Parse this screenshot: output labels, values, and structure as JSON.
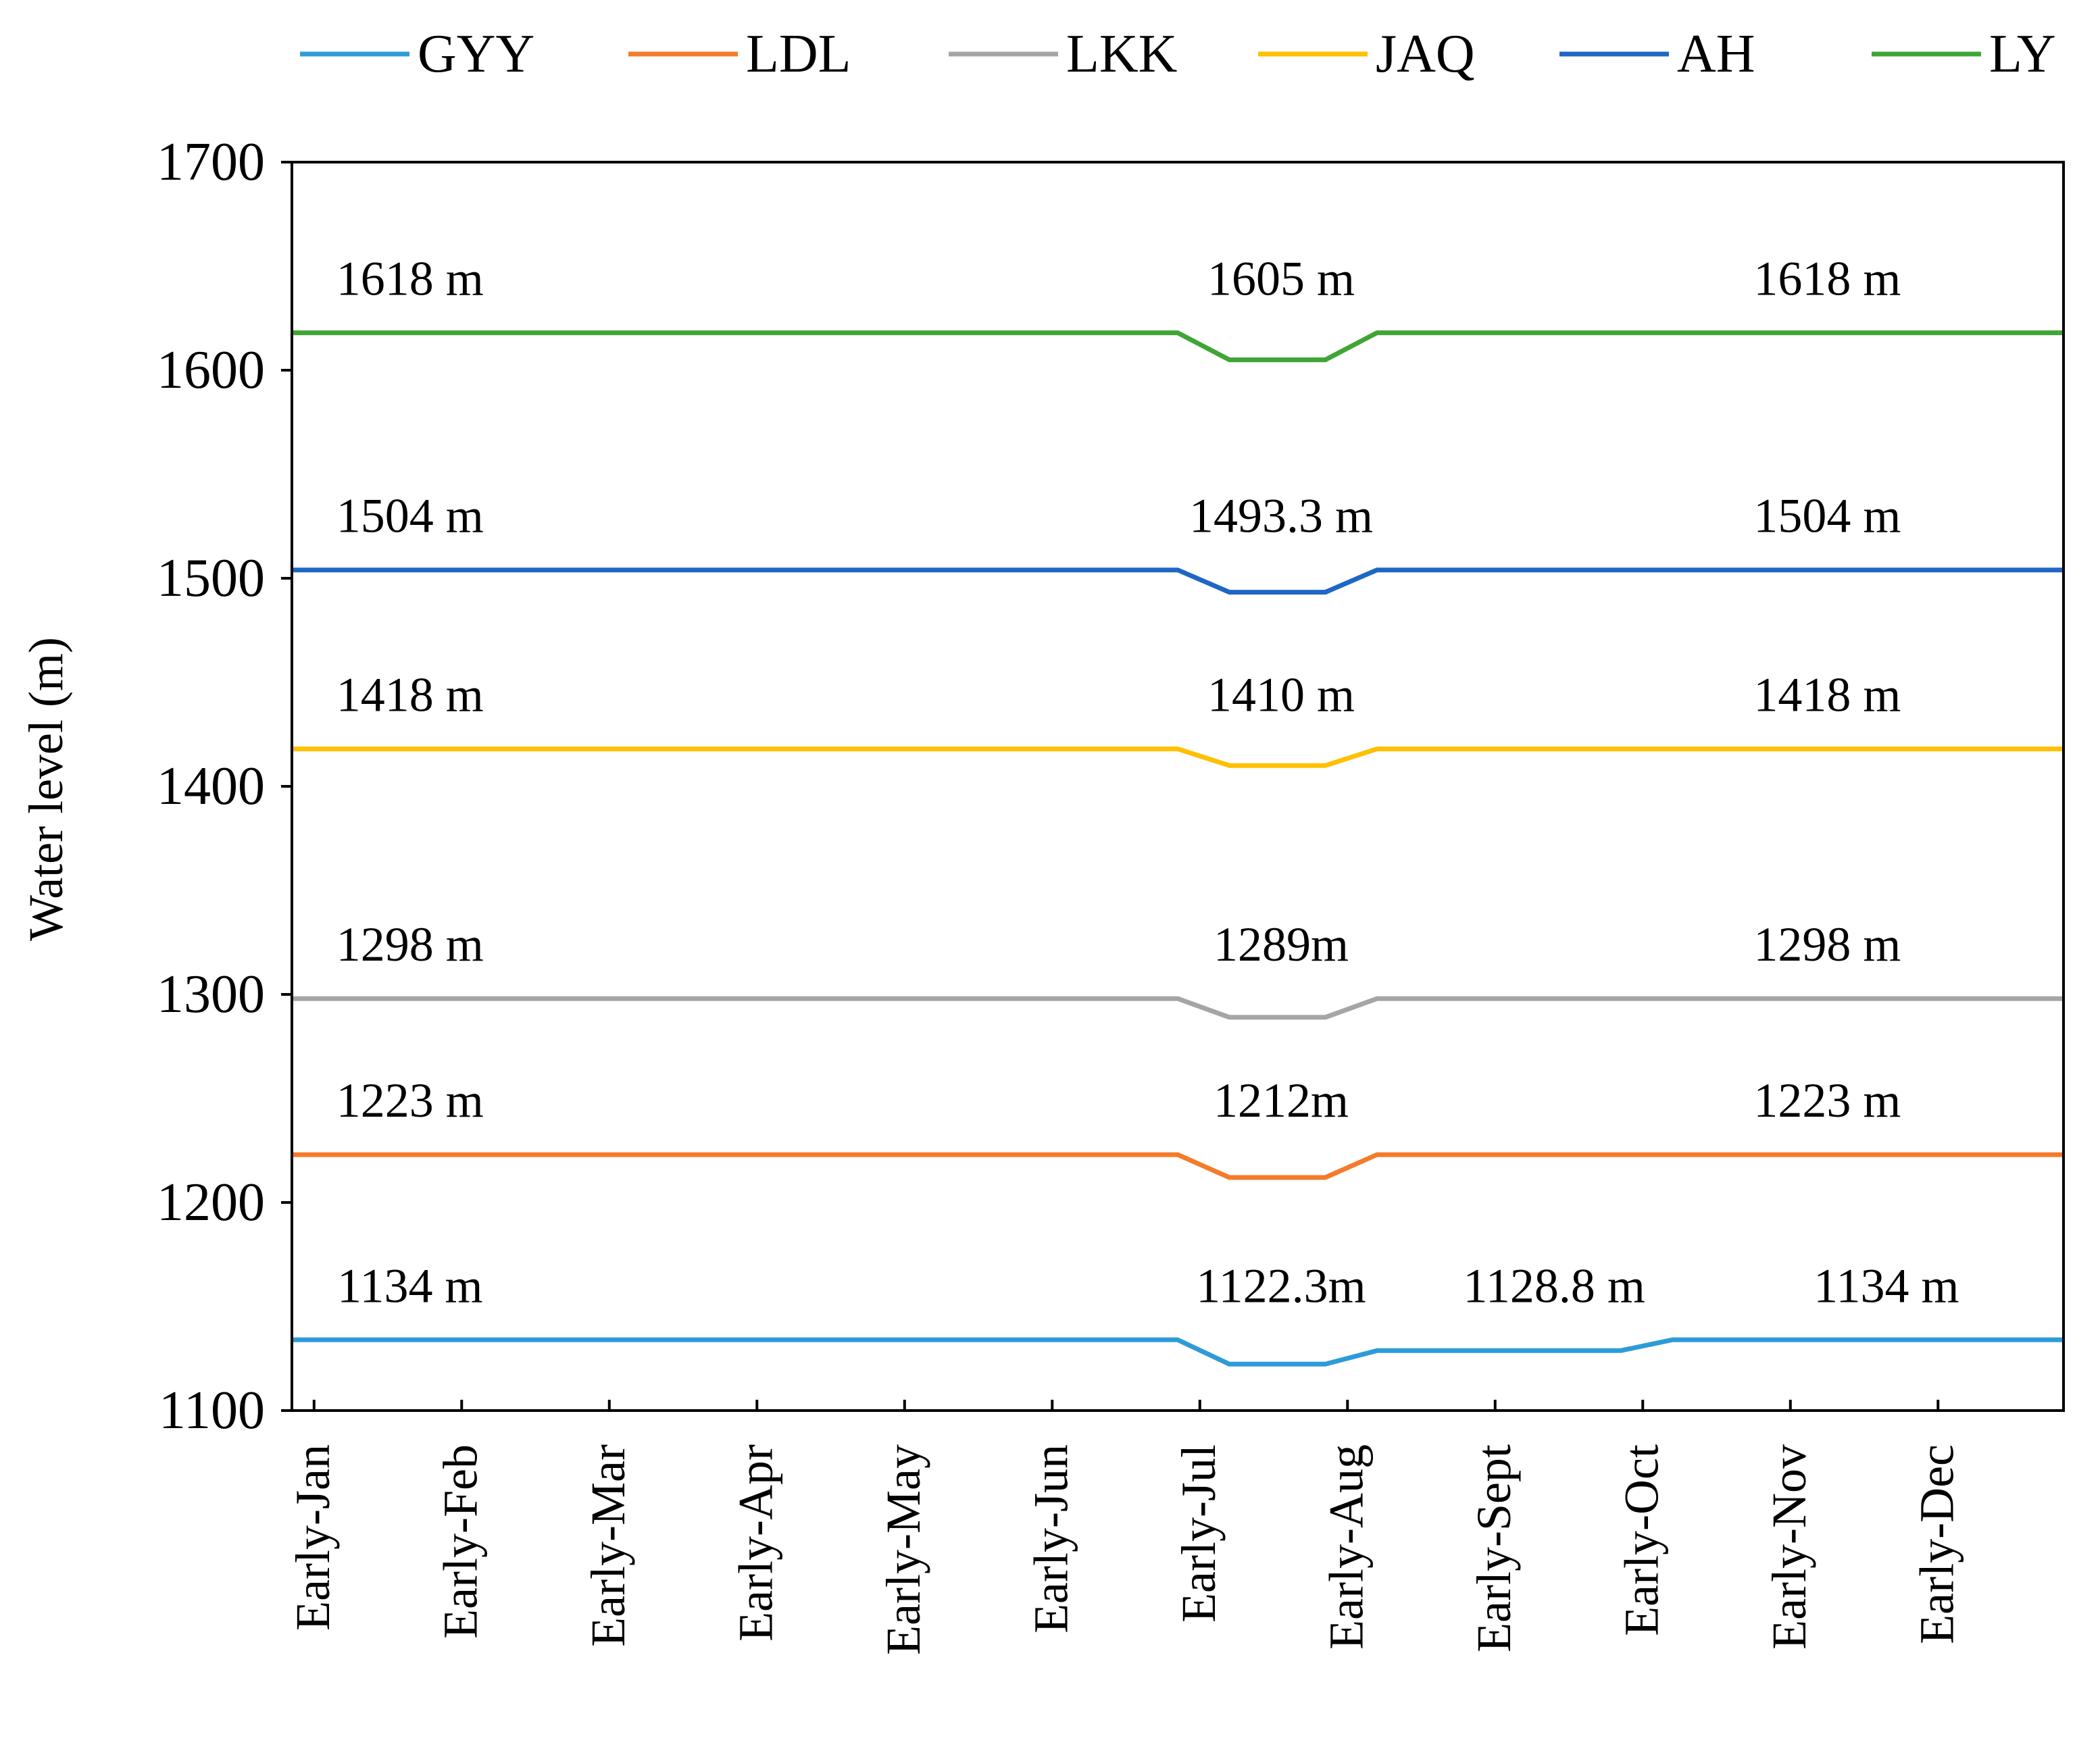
{
  "chart_data": {
    "type": "line",
    "title": "",
    "xlabel": "",
    "ylabel": "Water level (m)",
    "ylim": [
      1100,
      1700
    ],
    "yticks": [
      1100,
      1200,
      1300,
      1400,
      1500,
      1600,
      1700
    ],
    "categories": [
      "Early-Jan",
      "Early-Feb",
      "Early-Mar",
      "Early-Apr",
      "Early-May",
      "Early-Jun",
      "Early-Jul",
      "Early-Aug",
      "Early-Sept",
      "Early-Oct",
      "Early-Nov",
      "Early-Dec"
    ],
    "x_range": [
      -0.15,
      11.85
    ],
    "grid": false,
    "legend_position": "top",
    "series": [
      {
        "name": "GYY",
        "color": "#2E9BD8",
        "points": [
          [
            -0.15,
            1134
          ],
          [
            5.85,
            1134
          ],
          [
            6.2,
            1122.3
          ],
          [
            6.85,
            1122.3
          ],
          [
            7.2,
            1128.8
          ],
          [
            8.85,
            1128.8
          ],
          [
            9.2,
            1134
          ],
          [
            11.85,
            1134
          ]
        ],
        "annotations": [
          {
            "text": "1134 m",
            "x": 0.65,
            "y": 1134
          },
          {
            "text": "1122.3m",
            "x": 6.55,
            "y": 1134
          },
          {
            "text": "1128.8 m",
            "x": 8.4,
            "y": 1134
          },
          {
            "text": "1134 m",
            "x": 10.65,
            "y": 1134
          }
        ]
      },
      {
        "name": "LDL",
        "color": "#F47B2A",
        "points": [
          [
            -0.15,
            1223
          ],
          [
            5.85,
            1223
          ],
          [
            6.2,
            1212
          ],
          [
            6.85,
            1212
          ],
          [
            7.2,
            1223
          ],
          [
            11.85,
            1223
          ]
        ],
        "annotations": [
          {
            "text": "1223 m",
            "x": 0.65,
            "y": 1223
          },
          {
            "text": "1212m",
            "x": 6.55,
            "y": 1223
          },
          {
            "text": "1223 m",
            "x": 10.25,
            "y": 1223
          }
        ]
      },
      {
        "name": "LKK",
        "color": "#A5A5A5",
        "points": [
          [
            -0.15,
            1298
          ],
          [
            5.85,
            1298
          ],
          [
            6.2,
            1289
          ],
          [
            6.85,
            1289
          ],
          [
            7.2,
            1298
          ],
          [
            11.85,
            1298
          ]
        ],
        "annotations": [
          {
            "text": "1298 m",
            "x": 0.65,
            "y": 1298
          },
          {
            "text": "1289m",
            "x": 6.55,
            "y": 1298
          },
          {
            "text": "1298 m",
            "x": 10.25,
            "y": 1298
          }
        ]
      },
      {
        "name": "JAQ",
        "color": "#FFC000",
        "points": [
          [
            -0.15,
            1418
          ],
          [
            5.85,
            1418
          ],
          [
            6.2,
            1410
          ],
          [
            6.85,
            1410
          ],
          [
            7.2,
            1418
          ],
          [
            11.85,
            1418
          ]
        ],
        "annotations": [
          {
            "text": "1418 m",
            "x": 0.65,
            "y": 1418
          },
          {
            "text": "1410 m",
            "x": 6.55,
            "y": 1418
          },
          {
            "text": "1418 m",
            "x": 10.25,
            "y": 1418
          }
        ]
      },
      {
        "name": "AH",
        "color": "#1F66C5",
        "points": [
          [
            -0.15,
            1504
          ],
          [
            5.85,
            1504
          ],
          [
            6.2,
            1493.3
          ],
          [
            6.85,
            1493.3
          ],
          [
            7.2,
            1504
          ],
          [
            11.85,
            1504
          ]
        ],
        "annotations": [
          {
            "text": "1504 m",
            "x": 0.65,
            "y": 1504
          },
          {
            "text": "1493.3 m",
            "x": 6.55,
            "y": 1504
          },
          {
            "text": "1504 m",
            "x": 10.25,
            "y": 1504
          }
        ]
      },
      {
        "name": "LY",
        "color": "#3FA535",
        "points": [
          [
            -0.15,
            1618
          ],
          [
            5.85,
            1618
          ],
          [
            6.2,
            1605
          ],
          [
            6.85,
            1605
          ],
          [
            7.2,
            1618
          ],
          [
            11.85,
            1618
          ]
        ],
        "annotations": [
          {
            "text": "1618 m",
            "x": 0.65,
            "y": 1618
          },
          {
            "text": "1605 m",
            "x": 6.55,
            "y": 1618
          },
          {
            "text": "1618 m",
            "x": 10.25,
            "y": 1618
          }
        ]
      }
    ]
  }
}
